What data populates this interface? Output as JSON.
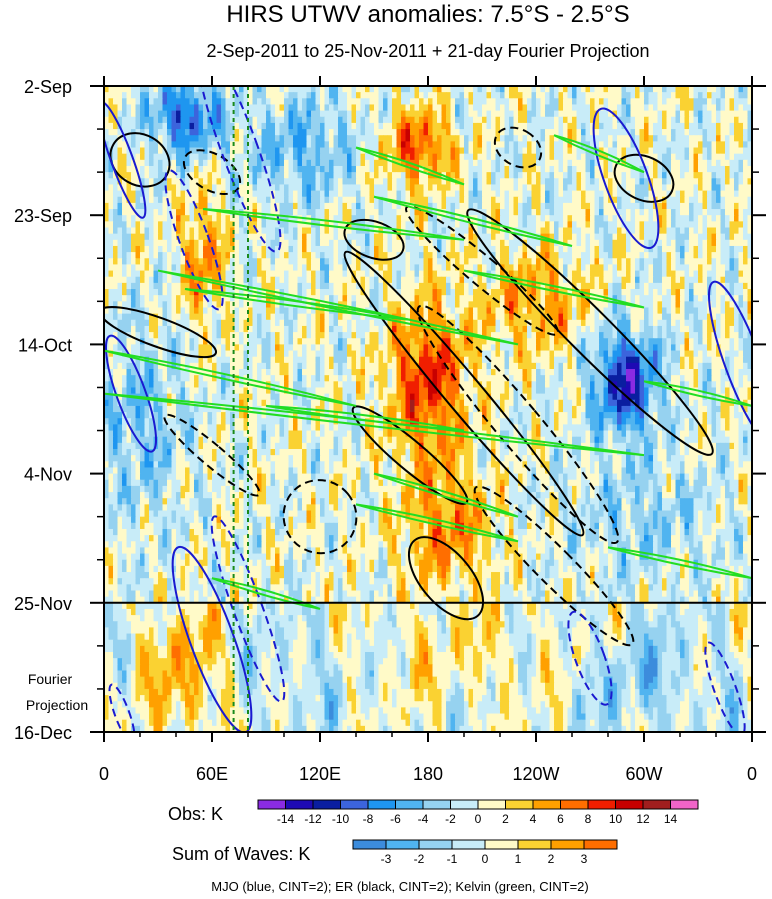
{
  "chart_data": {
    "type": "heatmap",
    "title": "HIRS UTWV anomalies: 7.5°S - 2.5°S",
    "subtitle": "2-Sep-2011 to 25-Nov-2011 + 21-day Fourier Projection",
    "x_tick_labels": [
      "0",
      "60E",
      "120E",
      "180",
      "120W",
      "60W",
      "0"
    ],
    "x_ticks_deg": [
      0,
      60,
      120,
      180,
      240,
      300,
      360
    ],
    "xlim": [
      0,
      360
    ],
    "y_tick_labels": [
      "2-Sep",
      "23-Sep",
      "14-Oct",
      "4-Nov",
      "25-Nov",
      "16-Dec"
    ],
    "y_ticks_day": [
      0,
      21,
      42,
      63,
      84,
      105
    ],
    "ylim": [
      0,
      105
    ],
    "projection_start_day": 84,
    "projection_label": [
      "Fourier",
      "Projection"
    ],
    "reference_lines_lon": [
      72,
      80
    ],
    "obs_legend": {
      "label": "Obs: K",
      "levels": [
        "-14",
        "-12",
        "-10",
        "-8",
        "-6",
        "-4",
        "-2",
        "0",
        "2",
        "4",
        "6",
        "8",
        "10",
        "12",
        "14"
      ],
      "colors": [
        "#8a2be2",
        "#1e0ab4",
        "#0a1ea0",
        "#3c64dc",
        "#1e96f0",
        "#50b4f0",
        "#96d2f0",
        "#c8ecf8",
        "#fffac8",
        "#fad232",
        "#ffa000",
        "#ff6e00",
        "#f01e00",
        "#c80000",
        "#a01e1e",
        "#f064c8"
      ]
    },
    "waves_legend": {
      "label": "Sum of Waves: K",
      "levels": [
        "-3",
        "-2",
        "-1",
        "0",
        "1",
        "2",
        "3"
      ],
      "colors": [
        "#3c8cdc",
        "#50b4f0",
        "#96d2f0",
        "#c8ecf8",
        "#fffac8",
        "#fad232",
        "#ffa000",
        "#ff6e00"
      ]
    },
    "caption": "MJO (blue, CINT=2); ER (black, CINT=2); Kelvin (green, CINT=2)",
    "contour_colors": {
      "mjo": "#1a1ad0",
      "er": "#000000",
      "kelvin": "#22dd22",
      "ref": "#1a8a1a"
    }
  }
}
